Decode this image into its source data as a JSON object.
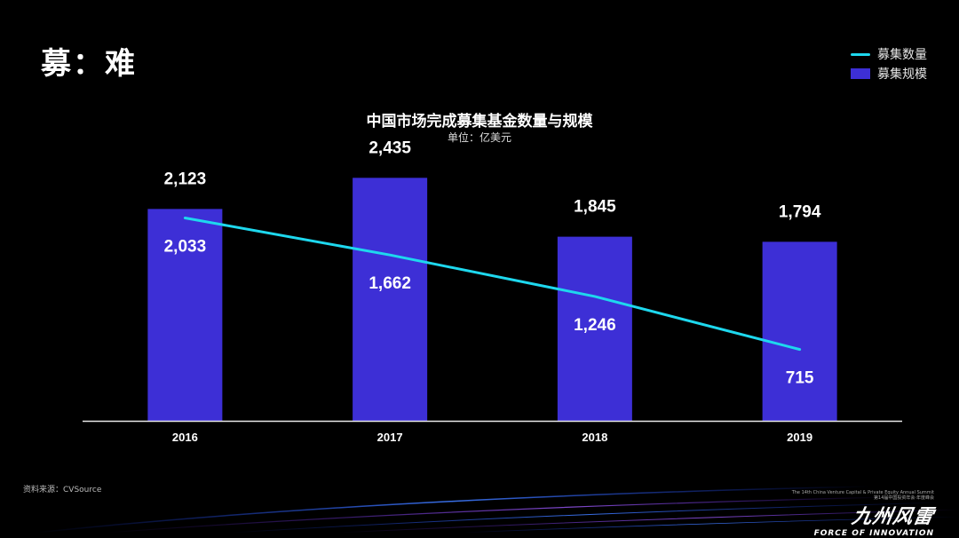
{
  "slide": {
    "title": "募：难"
  },
  "legend": {
    "count_label": "募集数量",
    "scale_label": "募集规模"
  },
  "colors": {
    "bar": "#3d2fd6",
    "line": "#1ed8ee",
    "background": "#000000"
  },
  "chart_data": {
    "type": "bar",
    "title": "中国市场完成募集基金数量与规模",
    "subtitle": "单位：亿美元",
    "categories": [
      "2016",
      "2017",
      "2018",
      "2019"
    ],
    "series": [
      {
        "name": "募集规模",
        "type": "bar",
        "values": [
          2123,
          2435,
          1845,
          1794
        ],
        "labels": [
          "2,123",
          "2,435",
          "1,845",
          "1,794"
        ]
      },
      {
        "name": "募集数量",
        "type": "line",
        "values": [
          2033,
          1662,
          1246,
          715
        ],
        "labels": [
          "2,033",
          "1,662",
          "1,246",
          "715"
        ]
      }
    ],
    "ylim": [
      0,
      2500
    ],
    "grid": false,
    "legend": "top-right"
  },
  "footer": {
    "source": "资料来源：CVSource",
    "brand_small_1": "The 14th China Venture Capital & Private Equity Annual Summit",
    "brand_small_2": "第14届中国投资年会·年度峰会",
    "brand_main": "九州风雷",
    "brand_eng": "FORCE OF INNOVATION"
  }
}
